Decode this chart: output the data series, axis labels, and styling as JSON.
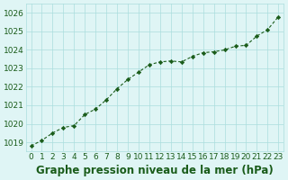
{
  "x": [
    0,
    1,
    2,
    3,
    4,
    5,
    6,
    7,
    8,
    9,
    10,
    11,
    12,
    13,
    14,
    15,
    16,
    17,
    18,
    19,
    20,
    21,
    22,
    23
  ],
  "y": [
    1018.8,
    1019.1,
    1019.5,
    1019.8,
    1019.9,
    1020.5,
    1020.8,
    1021.3,
    1021.9,
    1022.4,
    1022.8,
    1023.2,
    1023.35,
    1023.4,
    1023.35,
    1023.65,
    1023.85,
    1023.9,
    1024.0,
    1024.2,
    1024.25,
    1024.75,
    1025.1,
    1025.8
  ],
  "ylim": [
    1018.5,
    1026.5
  ],
  "xlim": [
    -0.5,
    23.5
  ],
  "yticks": [
    1019,
    1020,
    1021,
    1022,
    1023,
    1024,
    1025,
    1026
  ],
  "xticks": [
    0,
    1,
    2,
    3,
    4,
    5,
    6,
    7,
    8,
    9,
    10,
    11,
    12,
    13,
    14,
    15,
    16,
    17,
    18,
    19,
    20,
    21,
    22,
    23
  ],
  "line_color": "#1a5c1a",
  "marker_color": "#1a5c1a",
  "bg_color": "#dff5f5",
  "grid_color": "#aadddd",
  "title": "Graphe pression niveau de la mer (hPa)",
  "title_color": "#1a5c1a",
  "title_fontsize": 8.5,
  "tick_fontsize": 6.5,
  "tick_color": "#1a5c1a"
}
